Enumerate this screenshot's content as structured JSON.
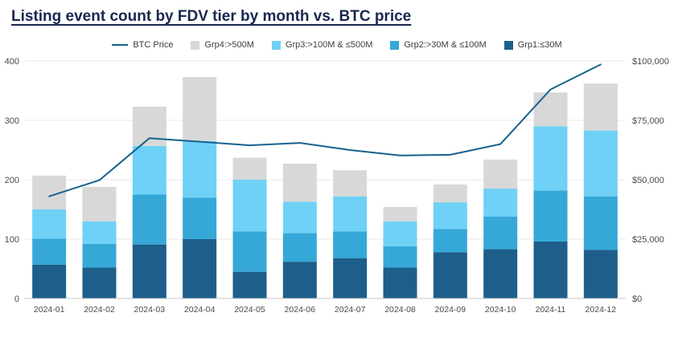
{
  "title": "Listing event count by FDV tier by month vs. BTC price",
  "chart_data": {
    "type": "bar",
    "subtype": "stacked-bar-with-line",
    "title": "Listing event count by FDV tier by month vs. BTC price",
    "categories": [
      "2024-01",
      "2024-02",
      "2024-03",
      "2024-04",
      "2024-05",
      "2024-06",
      "2024-07",
      "2024-08",
      "2024-09",
      "2024-10",
      "2024-11",
      "2024-12"
    ],
    "series": [
      {
        "name": "Grp1:≤30M",
        "color": "#1d5f8a",
        "values": [
          57,
          52,
          91,
          100,
          45,
          62,
          68,
          52,
          78,
          83,
          96,
          82
        ]
      },
      {
        "name": "Grp2:>30M & ≤100M",
        "color": "#35a8d8",
        "values": [
          44,
          40,
          84,
          70,
          68,
          48,
          45,
          36,
          39,
          55,
          86,
          90
        ]
      },
      {
        "name": "Grp3:>100M & ≤500M",
        "color": "#6fd1f6",
        "values": [
          49,
          38,
          82,
          95,
          87,
          53,
          59,
          42,
          45,
          47,
          108,
          111
        ]
      },
      {
        "name": "Grp4:>500M",
        "color": "#d8d8d8",
        "values": [
          57,
          58,
          66,
          108,
          37,
          64,
          44,
          24,
          30,
          49,
          57,
          79
        ]
      }
    ],
    "bar_totals": [
      207,
      188,
      323,
      373,
      237,
      227,
      216,
      154,
      192,
      234,
      347,
      362
    ],
    "line_series": {
      "name": "BTC Price",
      "color": "#16628e",
      "axis": "right",
      "values": [
        43000,
        49800,
        67500,
        66000,
        64500,
        65500,
        62500,
        60200,
        60500,
        65000,
        88000,
        98500
      ]
    },
    "left_axis": {
      "min": 0,
      "max": 400,
      "ticks": [
        0,
        100,
        200,
        300,
        400
      ],
      "tick_labels": [
        "0",
        "100",
        "200",
        "300",
        "400"
      ]
    },
    "right_axis": {
      "min": 0,
      "max": 100000,
      "ticks": [
        0,
        25000,
        50000,
        75000,
        100000
      ],
      "tick_labels": [
        "$0",
        "$25,000",
        "$50,000",
        "$75,000",
        "$100,000"
      ]
    },
    "legend_order": [
      "BTC Price",
      "Grp4:>500M",
      "Grp3:>100M & ≤500M",
      "Grp2:>30M & ≤100M",
      "Grp1:≤30M"
    ],
    "grid": true,
    "grid_color": "#e8e8e8",
    "axis_line_color": "#c9c9c9",
    "legend_position": "top-center",
    "xlabel": "",
    "ylabel_left": "",
    "ylabel_right": ""
  }
}
